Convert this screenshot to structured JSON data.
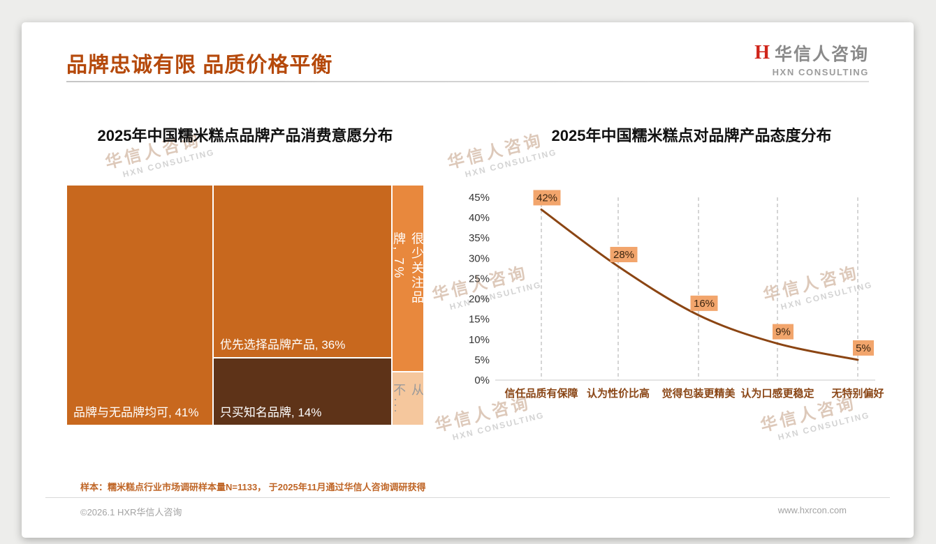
{
  "page": {
    "title": "品牌忠诚有限 品质价格平衡",
    "footnote": "样本：糯米糕点行业市场调研样本量N=1133， 于2025年11月通过华信人咨询调研获得",
    "copyright": "©2026.1 HXR华信人咨询",
    "website": "www.hxrcon.com"
  },
  "logo": {
    "mark": "H",
    "name_cn": "华信人咨询",
    "name_en": "HXN CONSULTING"
  },
  "watermark": {
    "line1": "华信人咨询",
    "line2": "HXN CONSULTING"
  },
  "chart_data": [
    {
      "type": "treemap",
      "title": "2025年中国糯米糕点品牌产品消费意愿分布",
      "columns": [
        {
          "vertical": false,
          "items": [
            {
              "label": "品牌与无品牌均可, 41%",
              "name": "品牌与无品牌均可",
              "value": 41,
              "color": "#C8681E"
            }
          ]
        },
        {
          "vertical": false,
          "items": [
            {
              "label": "优先选择品牌产品, 36%",
              "name": "优先选择品牌产品",
              "value": 36,
              "color": "#C8681E"
            },
            {
              "label": "只买知名品牌, 14%",
              "name": "只买知名品牌",
              "value": 14,
              "color": "#5E3318"
            }
          ]
        },
        {
          "vertical": true,
          "items": [
            {
              "label": "很少关注品牌, 7%",
              "name": "很少关注品牌",
              "value": 7,
              "color": "#E8883D"
            },
            {
              "label": "从不...",
              "name": "从不关注品牌",
              "value": 2,
              "color": "#F5C79D",
              "text_color": "#9a9a9a"
            }
          ]
        }
      ]
    },
    {
      "type": "line",
      "title": "2025年中国糯米糕点对品牌产品态度分布",
      "categories": [
        "信任品质有保障",
        "认为性价比高",
        "觉得包装更精美",
        "认为口感更稳定",
        "无特别偏好"
      ],
      "values": [
        42,
        28,
        16,
        9,
        5
      ],
      "labels": [
        "42%",
        "28%",
        "16%",
        "9%",
        "5%"
      ],
      "ylim": [
        0,
        45
      ],
      "ytick_step": 5,
      "grid": "dashed-vertical",
      "legend": "none",
      "line_color": "#8B4513",
      "label_bg": "#F2A56C",
      "label_text_color": "#3a240f",
      "category_color": "#8a4616",
      "axis_color": "#c9c9c9"
    }
  ]
}
